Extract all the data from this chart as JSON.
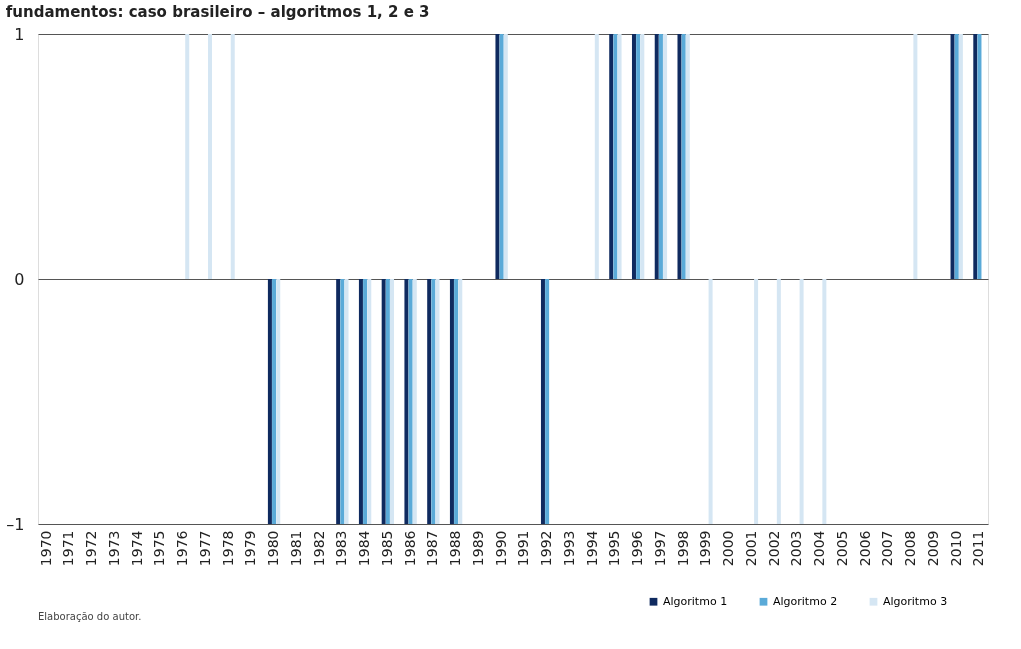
{
  "chart_data": {
    "type": "bar",
    "title": "fundamentos: caso brasileiro – algoritmos 1, 2 e 3",
    "categories": [
      "1970",
      "1971",
      "1972",
      "1973",
      "1974",
      "1975",
      "1976",
      "1977",
      "1978",
      "1979",
      "1980",
      "1981",
      "1982",
      "1983",
      "1984",
      "1985",
      "1986",
      "1987",
      "1988",
      "1989",
      "1990",
      "1991",
      "1992",
      "1993",
      "1994",
      "1995",
      "1996",
      "1997",
      "1998",
      "1999",
      "2000",
      "2001",
      "2002",
      "2003",
      "2004",
      "2005",
      "2006",
      "2007",
      "2008",
      "2009",
      "2010",
      "2011"
    ],
    "series": [
      {
        "name": "Algoritmo 1",
        "color": "#0f2a5f",
        "values": [
          0,
          0,
          0,
          0,
          0,
          0,
          0,
          0,
          0,
          0,
          -1,
          0,
          0,
          -1,
          -1,
          -1,
          -1,
          -1,
          -1,
          0,
          1,
          0,
          -1,
          0,
          0,
          1,
          1,
          1,
          1,
          0,
          0,
          0,
          0,
          0,
          0,
          0,
          0,
          0,
          0,
          0,
          1,
          1
        ]
      },
      {
        "name": "Algoritmo 2",
        "color": "#5aaad8",
        "values": [
          0,
          0,
          0,
          0,
          0,
          0,
          0,
          0,
          0,
          0,
          -1,
          0,
          0,
          -1,
          -1,
          -1,
          -1,
          -1,
          -1,
          0,
          1,
          0,
          -1,
          0,
          0,
          1,
          1,
          1,
          1,
          0,
          0,
          0,
          0,
          0,
          0,
          0,
          0,
          0,
          0,
          0,
          1,
          1
        ]
      },
      {
        "name": "Algoritmo 3",
        "color": "#d5e6f3",
        "values": [
          0,
          0,
          0,
          0,
          0,
          0,
          1,
          1,
          1,
          0,
          -1,
          0,
          0,
          -1,
          -1,
          -1,
          -1,
          -1,
          -1,
          0,
          1,
          0,
          0,
          0,
          1,
          1,
          1,
          1,
          1,
          -1,
          0,
          -1,
          -1,
          -1,
          -1,
          0,
          0,
          0,
          1,
          0,
          1,
          null
        ]
      }
    ],
    "ylim": [
      -1,
      1
    ],
    "yticks": [
      {
        "value": -1,
        "label": "–1"
      },
      0,
      1
    ],
    "grid": "y",
    "legend": "bottom right",
    "annotations": [
      "Elaboração do autor."
    ]
  }
}
